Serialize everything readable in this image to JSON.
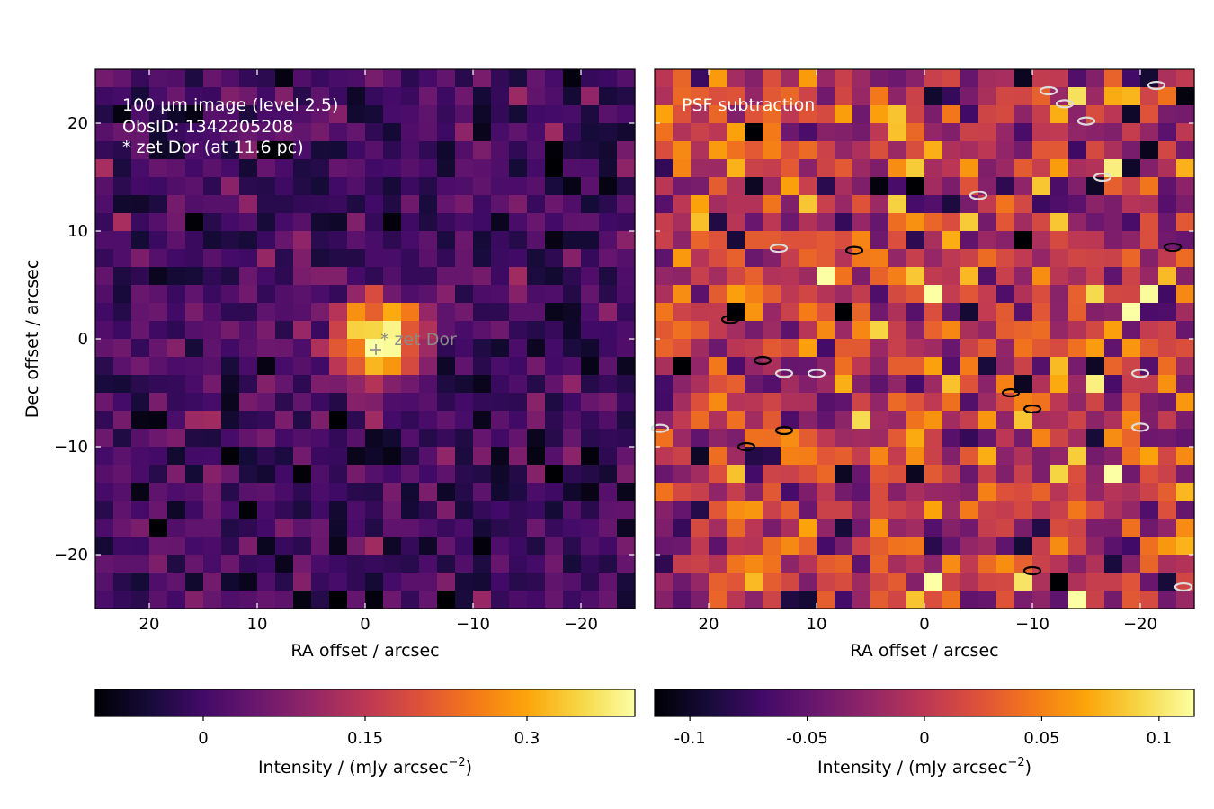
{
  "chart_data": [
    {
      "type": "heatmap",
      "panel": "left",
      "annotation_lines": [
        "100 µm image (level 2.5)",
        "ObsID: 1342205208",
        "* zet Dor (at 11.6 pc)"
      ],
      "marker_label": "* zet Dor",
      "marker": {
        "ra": -1,
        "dec": -1
      },
      "xlabel": "RA offset / arcsec",
      "ylabel": "Dec offset / arcsec",
      "xlim": [
        25,
        -25
      ],
      "ylim": [
        -25,
        25
      ],
      "xticks": [
        {
          "v": 20,
          "t": "20"
        },
        {
          "v": 10,
          "t": "10"
        },
        {
          "v": 0,
          "t": "0"
        },
        {
          "v": -10,
          "t": "−10"
        },
        {
          "v": -20,
          "t": "−20"
        }
      ],
      "yticks": [
        {
          "v": 20,
          "t": "20"
        },
        {
          "v": 10,
          "t": "10"
        },
        {
          "v": 0,
          "t": "0"
        },
        {
          "v": -10,
          "t": "−10"
        },
        {
          "v": -20,
          "t": "−20"
        }
      ],
      "grid": {
        "nx": 30,
        "ny": 30,
        "pixel_arcsec": 1.6667
      },
      "colormap": "inferno",
      "vmin": -0.1,
      "vmax": 0.4,
      "source": {
        "ra": -1,
        "dec": 0,
        "peak": 0.4,
        "sigma_arcsec": 2.8
      },
      "background": {
        "mean": 0.0,
        "noise": 0.045
      },
      "colorbar": {
        "ticks": [
          {
            "v": 0,
            "t": "0"
          },
          {
            "v": 0.15,
            "t": "0.15"
          },
          {
            "v": 0.3,
            "t": "0.3"
          }
        ],
        "label": "Intensity / (mJy arcsec",
        "label_exponent": "−2",
        "label_suffix": ")"
      }
    },
    {
      "type": "heatmap",
      "panel": "right",
      "annotation_lines": [
        "PSF subtraction"
      ],
      "xlabel": "RA offset / arcsec",
      "xlim": [
        25,
        -25
      ],
      "ylim": [
        -25,
        25
      ],
      "xticks": [
        {
          "v": 20,
          "t": "20"
        },
        {
          "v": 10,
          "t": "10"
        },
        {
          "v": 0,
          "t": "0"
        },
        {
          "v": -10,
          "t": "−10"
        },
        {
          "v": -20,
          "t": "−20"
        }
      ],
      "grid": {
        "nx": 30,
        "ny": 30,
        "pixel_arcsec": 1.6667
      },
      "colormap": "inferno",
      "vmin": -0.115,
      "vmax": 0.115,
      "background": {
        "mean": 0.0,
        "noise": 0.045
      },
      "contours": {
        "positive": [
          {
            "ra": -10,
            "dec": -21.5
          },
          {
            "ra": 13,
            "dec": -8.5
          },
          {
            "ra": 16.5,
            "dec": -10
          },
          {
            "ra": 18,
            "dec": 1.8
          },
          {
            "ra": 6.5,
            "dec": 8.2
          },
          {
            "ra": -8,
            "dec": -5
          },
          {
            "ra": -10,
            "dec": -6.5
          },
          {
            "ra": 15,
            "dec": -2
          },
          {
            "ra": -23,
            "dec": 8.5
          }
        ],
        "negative": [
          {
            "ra": 10,
            "dec": -3.2
          },
          {
            "ra": 13,
            "dec": -3.2
          },
          {
            "ra": -20,
            "dec": -3.2
          },
          {
            "ra": -20,
            "dec": -8.2
          },
          {
            "ra": -16.5,
            "dec": 15
          },
          {
            "ra": -5,
            "dec": 13.3
          },
          {
            "ra": -13,
            "dec": 21.8
          },
          {
            "ra": -15,
            "dec": 20.2
          },
          {
            "ra": -11.5,
            "dec": 23
          },
          {
            "ra": -21.5,
            "dec": 23.5
          },
          {
            "ra": -24,
            "dec": -23
          },
          {
            "ra": 24.5,
            "dec": -8.3
          },
          {
            "ra": 13.5,
            "dec": 8.4
          }
        ]
      },
      "colorbar": {
        "ticks": [
          {
            "v": -0.1,
            "t": "-0.1"
          },
          {
            "v": -0.05,
            "t": "-0.05"
          },
          {
            "v": 0,
            "t": "0"
          },
          {
            "v": 0.05,
            "t": "0.05"
          },
          {
            "v": 0.1,
            "t": "0.1"
          }
        ],
        "label": "Intensity / (mJy arcsec",
        "label_exponent": "−2",
        "label_suffix": ")"
      }
    }
  ]
}
